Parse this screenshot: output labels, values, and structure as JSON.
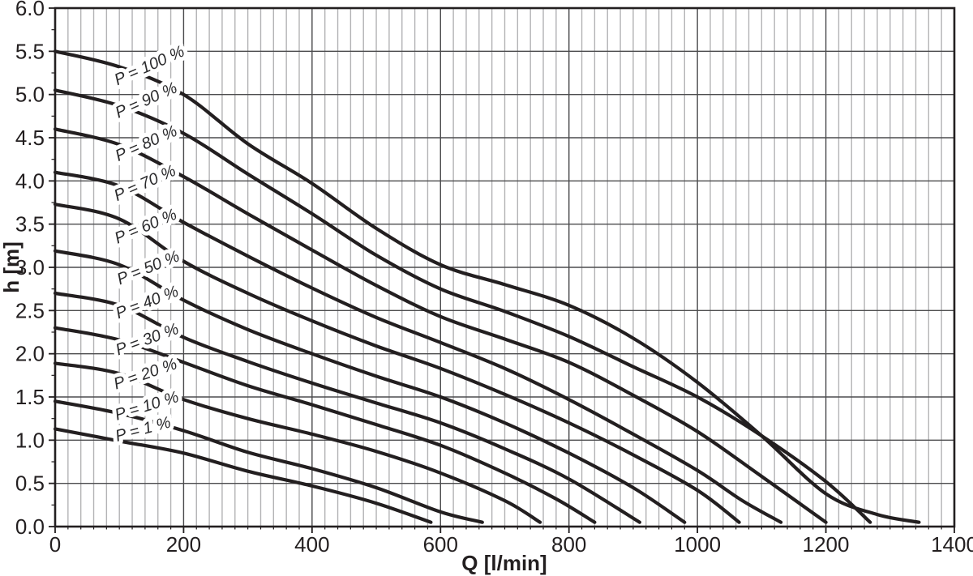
{
  "chart_data": {
    "type": "line",
    "title": "",
    "xlabel": "Q [l/min]",
    "ylabel": "h [m]",
    "xlim": [
      0,
      1400
    ],
    "ylim": [
      0,
      6
    ],
    "x_major_step": 200,
    "x_minor_step": 20,
    "y_major_step": 0.5,
    "y_minor_tick_step": 0.25,
    "grid": {
      "minor_vertical": true,
      "major_vertical": true,
      "major_horizontal": true,
      "minor_horizontal": false
    },
    "legend_position": "inline-curve-labels",
    "x_tick_labels": [
      "0",
      "200",
      "400",
      "600",
      "800",
      "1000",
      "1200",
      "1400"
    ],
    "y_tick_labels": [
      "0.0",
      "0.5",
      "1.0",
      "1.5",
      "2.0",
      "2.5",
      "3.0",
      "3.5",
      "4.0",
      "4.5",
      "5.0",
      "5.5",
      "6.0"
    ],
    "series": [
      {
        "name": "P = 100 %",
        "points": [
          [
            0,
            5.5
          ],
          [
            100,
            5.32
          ],
          [
            200,
            5.0
          ],
          [
            300,
            4.43
          ],
          [
            400,
            3.97
          ],
          [
            500,
            3.45
          ],
          [
            600,
            3.03
          ],
          [
            700,
            2.8
          ],
          [
            800,
            2.56
          ],
          [
            900,
            2.18
          ],
          [
            1000,
            1.67
          ],
          [
            1100,
            1.05
          ],
          [
            1200,
            0.38
          ],
          [
            1280,
            0.14
          ],
          [
            1345,
            0.05
          ]
        ],
        "label": {
          "text": "P = 100 %",
          "q": 150,
          "h": 5.28,
          "angle": -24
        }
      },
      {
        "name": "P = 90 %",
        "points": [
          [
            0,
            5.05
          ],
          [
            100,
            4.87
          ],
          [
            200,
            4.55
          ],
          [
            300,
            4.08
          ],
          [
            400,
            3.62
          ],
          [
            500,
            3.14
          ],
          [
            600,
            2.75
          ],
          [
            700,
            2.49
          ],
          [
            800,
            2.2
          ],
          [
            900,
            1.85
          ],
          [
            1000,
            1.5
          ],
          [
            1100,
            1.05
          ],
          [
            1200,
            0.52
          ],
          [
            1269,
            0.05
          ]
        ],
        "label": {
          "text": "P = 90 %",
          "q": 145,
          "h": 4.88,
          "angle": -24
        }
      },
      {
        "name": "P = 80 %",
        "points": [
          [
            0,
            4.6
          ],
          [
            100,
            4.42
          ],
          [
            200,
            4.05
          ],
          [
            300,
            3.62
          ],
          [
            400,
            3.2
          ],
          [
            500,
            2.79
          ],
          [
            600,
            2.43
          ],
          [
            700,
            2.17
          ],
          [
            800,
            1.9
          ],
          [
            900,
            1.52
          ],
          [
            1000,
            1.1
          ],
          [
            1100,
            0.58
          ],
          [
            1200,
            0.05
          ]
        ],
        "label": {
          "text": "P = 80 %",
          "q": 145,
          "h": 4.38,
          "angle": -24
        }
      },
      {
        "name": "P = 70 %",
        "points": [
          [
            0,
            4.1
          ],
          [
            100,
            3.94
          ],
          [
            200,
            3.52
          ],
          [
            300,
            3.13
          ],
          [
            400,
            2.76
          ],
          [
            500,
            2.42
          ],
          [
            600,
            2.13
          ],
          [
            700,
            1.83
          ],
          [
            800,
            1.47
          ],
          [
            900,
            1.07
          ],
          [
            1000,
            0.65
          ],
          [
            1070,
            0.3
          ],
          [
            1130,
            0.05
          ]
        ],
        "label": {
          "text": "P = 70 %",
          "q": 143,
          "h": 3.92,
          "angle": -24
        }
      },
      {
        "name": "P = 60 %",
        "points": [
          [
            0,
            3.73
          ],
          [
            100,
            3.56
          ],
          [
            200,
            3.07
          ],
          [
            300,
            2.7
          ],
          [
            400,
            2.38
          ],
          [
            500,
            2.09
          ],
          [
            600,
            1.83
          ],
          [
            700,
            1.53
          ],
          [
            800,
            1.2
          ],
          [
            900,
            0.83
          ],
          [
            1000,
            0.42
          ],
          [
            1065,
            0.05
          ]
        ],
        "label": {
          "text": "P = 60 %",
          "q": 144,
          "h": 3.42,
          "angle": -23
        }
      },
      {
        "name": "P = 50 %",
        "points": [
          [
            0,
            3.19
          ],
          [
            100,
            3.03
          ],
          [
            200,
            2.62
          ],
          [
            300,
            2.28
          ],
          [
            400,
            2.0
          ],
          [
            500,
            1.74
          ],
          [
            600,
            1.5
          ],
          [
            700,
            1.2
          ],
          [
            800,
            0.85
          ],
          [
            900,
            0.45
          ],
          [
            980,
            0.05
          ]
        ],
        "label": {
          "text": "P = 50 %",
          "q": 148,
          "h": 2.94,
          "angle": -22
        }
      },
      {
        "name": "P = 40 %",
        "points": [
          [
            0,
            2.7
          ],
          [
            100,
            2.56
          ],
          [
            200,
            2.19
          ],
          [
            300,
            1.91
          ],
          [
            400,
            1.66
          ],
          [
            500,
            1.43
          ],
          [
            600,
            1.2
          ],
          [
            700,
            0.9
          ],
          [
            800,
            0.55
          ],
          [
            910,
            0.05
          ]
        ],
        "label": {
          "text": "P = 40 %",
          "q": 146,
          "h": 2.54,
          "angle": -21
        }
      },
      {
        "name": "P = 30 %",
        "points": [
          [
            0,
            2.3
          ],
          [
            100,
            2.16
          ],
          [
            200,
            1.9
          ],
          [
            300,
            1.63
          ],
          [
            400,
            1.41
          ],
          [
            500,
            1.18
          ],
          [
            600,
            0.94
          ],
          [
            700,
            0.62
          ],
          [
            780,
            0.32
          ],
          [
            840,
            0.05
          ]
        ],
        "label": {
          "text": "P = 30 %",
          "q": 146,
          "h": 2.11,
          "angle": -20
        }
      },
      {
        "name": "P = 20 %",
        "points": [
          [
            0,
            1.89
          ],
          [
            100,
            1.77
          ],
          [
            200,
            1.47
          ],
          [
            300,
            1.25
          ],
          [
            400,
            1.07
          ],
          [
            500,
            0.87
          ],
          [
            600,
            0.62
          ],
          [
            700,
            0.3
          ],
          [
            755,
            0.05
          ]
        ],
        "label": {
          "text": "P = 20 %",
          "q": 143,
          "h": 1.71,
          "angle": -19
        }
      },
      {
        "name": "P = 10 %",
        "points": [
          [
            0,
            1.45
          ],
          [
            100,
            1.31
          ],
          [
            200,
            1.11
          ],
          [
            300,
            0.86
          ],
          [
            400,
            0.67
          ],
          [
            500,
            0.45
          ],
          [
            600,
            0.17
          ],
          [
            665,
            0.05
          ]
        ],
        "label": {
          "text": "P = 10 %",
          "q": 145,
          "h": 1.34,
          "angle": -17
        }
      },
      {
        "name": "P = 1 %",
        "points": [
          [
            0,
            1.13
          ],
          [
            100,
            0.99
          ],
          [
            200,
            0.85
          ],
          [
            300,
            0.64
          ],
          [
            400,
            0.47
          ],
          [
            500,
            0.27
          ],
          [
            585,
            0.05
          ]
        ],
        "label": {
          "text": "P = 1 %",
          "q": 139,
          "h": 1.07,
          "angle": -15
        }
      }
    ]
  },
  "styles": {
    "background": "#ffffff",
    "curve_color": "#231f20",
    "curve_width": 4.2,
    "minor_grid_color": "#b4b4b6",
    "major_grid_color": "#4c4c4e",
    "frame_color": "#231f20",
    "tick_color": "#231f20",
    "text_color": "#231f20",
    "curve_label_color": "#2a2a2c",
    "curve_label_halo": "#ffffff"
  }
}
